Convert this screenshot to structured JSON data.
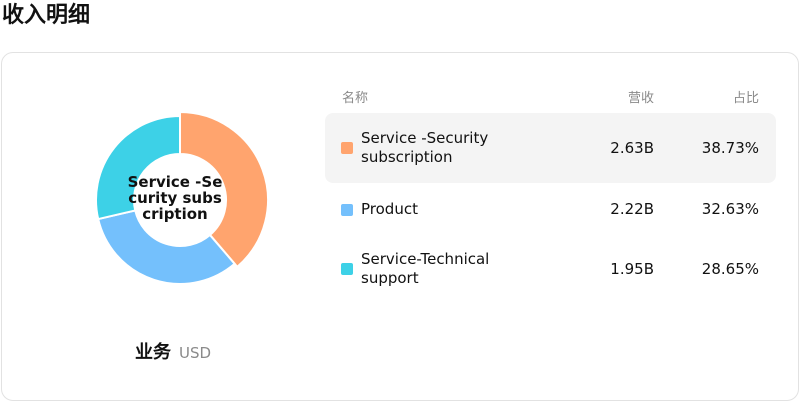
{
  "page": {
    "title": "收入明细"
  },
  "donut": {
    "center_label": "Service -Security subscription"
  },
  "summary": {
    "segment_label": "业务",
    "currency": "USD"
  },
  "table": {
    "columns": {
      "name": "名称",
      "revenue": "营收",
      "share": "占比"
    },
    "rows": [
      {
        "name": "Service -Security subscription",
        "revenue": "2.63B",
        "share": "38.73%",
        "share_value": 38.73,
        "color": "#FFA46E",
        "highlighted": true
      },
      {
        "name": "Product",
        "revenue": "2.22B",
        "share": "32.63%",
        "share_value": 32.63,
        "color": "#74C0FC",
        "highlighted": false
      },
      {
        "name": "Service-Technical support",
        "revenue": "1.95B",
        "share": "28.65%",
        "share_value": 28.65,
        "color": "#3DD1E7",
        "highlighted": false
      }
    ]
  }
}
